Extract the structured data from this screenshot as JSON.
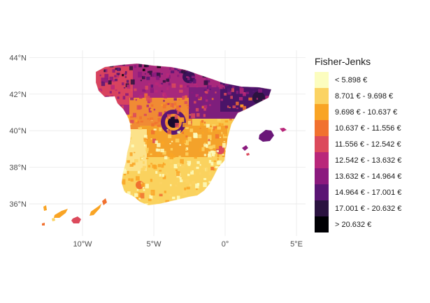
{
  "axes": {
    "y_ticks": [
      {
        "value": 44,
        "label": "44°N"
      },
      {
        "value": 42,
        "label": "42°N"
      },
      {
        "value": 40,
        "label": "40°N"
      },
      {
        "value": 38,
        "label": "38°N"
      },
      {
        "value": 36,
        "label": "36°N"
      }
    ],
    "x_ticks": [
      {
        "value": -10,
        "label": "10°W"
      },
      {
        "value": -5,
        "label": "5°W"
      },
      {
        "value": 0,
        "label": "0°"
      },
      {
        "value": 5,
        "label": "5°E"
      }
    ]
  },
  "legend": {
    "title": "Fisher-Jenks",
    "entries": [
      {
        "label": "< 5.898 €",
        "color": "#fcfdbf"
      },
      {
        "label": "8.701 € - 9.698 €",
        "color": "#fbd363"
      },
      {
        "label": "9.698 € - 10.637 €",
        "color": "#f9a424"
      },
      {
        "label": "10.637 € - 11.556 €",
        "color": "#f1712f"
      },
      {
        "label": "11.556 € - 12.542 €",
        "color": "#dc4a5c"
      },
      {
        "label": "12.542 € - 13.632 €",
        "color": "#b9277a"
      },
      {
        "label": "13.632 € - 14.964 €",
        "color": "#8b1a7e"
      },
      {
        "label": "14.964 € - 17.001 €",
        "color": "#5a1574"
      },
      {
        "label": "17.001 € - 20.632 €",
        "color": "#2b1340"
      },
      {
        "label": "> 20.632 €",
        "color": "#000004"
      }
    ]
  }
}
